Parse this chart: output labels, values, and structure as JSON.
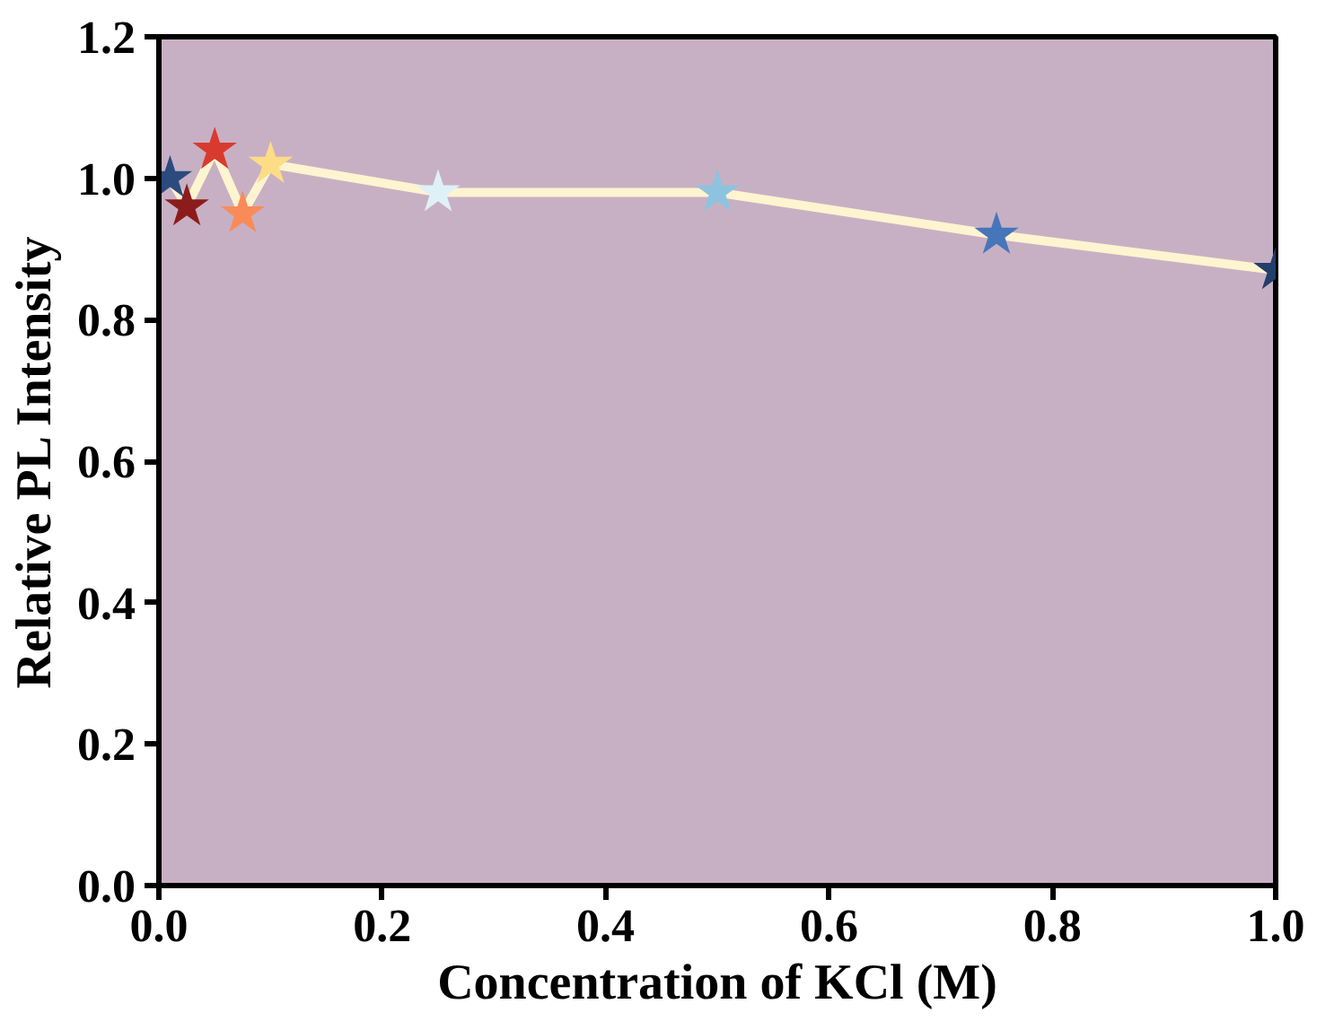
{
  "chart_data": {
    "type": "line",
    "xlabel": "Concentration of KCl (M)",
    "ylabel": "Relative PL Intensity",
    "x": [
      0.01,
      0.025,
      0.05,
      0.075,
      0.1,
      0.25,
      0.5,
      0.75,
      1.0
    ],
    "series": [
      {
        "color": "#fff4d0",
        "values": [
          1.0,
          0.96,
          1.04,
          0.95,
          1.02,
          0.98,
          0.98,
          0.92,
          0.87
        ],
        "colors": [
          "#2b4b7e",
          "#8c1c1c",
          "#d93a2e",
          "#f98b58",
          "#fddc86",
          "#dff1f8",
          "#8dc3de",
          "#4676b8",
          "#223e6c"
        ]
      }
    ],
    "marker": "star",
    "xlim": [
      0,
      1.0
    ],
    "ylim": [
      0,
      1.2
    ],
    "xticks": [
      {
        "value": 0,
        "label": "0.0"
      },
      0.2,
      0.4,
      0.6,
      0.8,
      {
        "value": 1,
        "label": "1.0"
      }
    ],
    "yticks": [
      {
        "value": 0,
        "label": "0.0"
      },
      0.2,
      0.4,
      0.6,
      0.8,
      {
        "value": 1,
        "label": "1.0"
      },
      1.2
    ],
    "grid": false
  }
}
